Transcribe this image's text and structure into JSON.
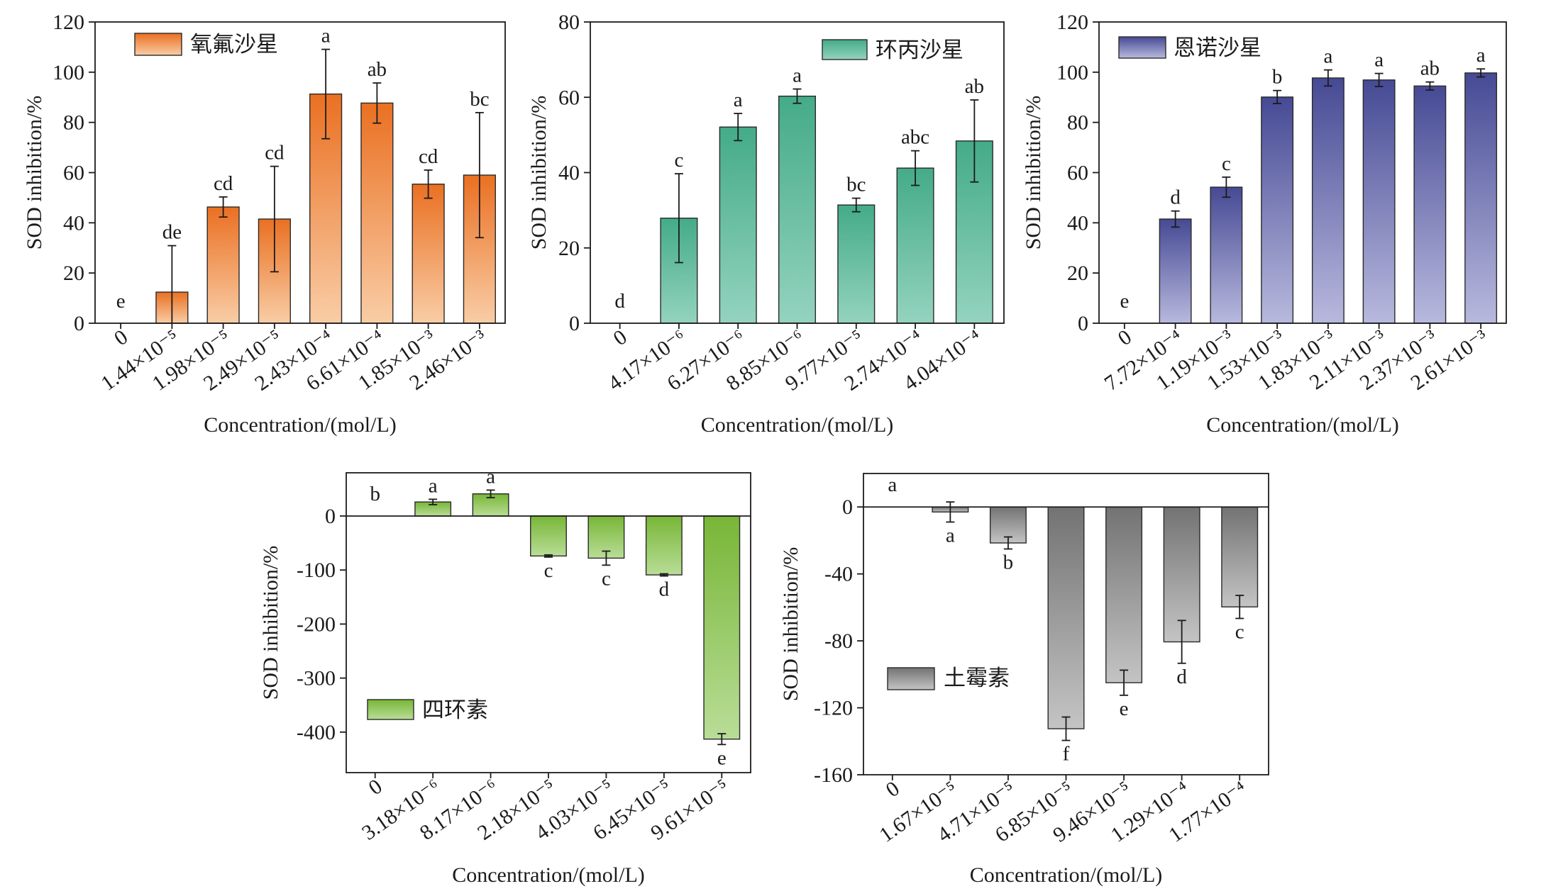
{
  "chart_data": [
    {
      "type": "bar",
      "categories": [
        "0",
        "1.44×10⁻⁵",
        "1.98×10⁻⁵",
        "2.49×10⁻⁵",
        "2.43×10⁻⁴",
        "6.61×10⁻⁴",
        "1.85×10⁻³",
        "2.46×10⁻³"
      ],
      "series": [
        {
          "name": "氧氟沙星",
          "values": [
            0,
            12.4,
            46.3,
            41.5,
            91.3,
            87.7,
            55.4,
            59.0
          ],
          "errors": [
            0,
            18.5,
            4.0,
            21.0,
            17.8,
            8.0,
            5.6,
            24.9
          ],
          "letters": [
            "e",
            "de",
            "cd",
            "cd",
            "a",
            "ab",
            "cd",
            "bc"
          ]
        }
      ],
      "xlabel": "Concentration/(mol/L)",
      "ylabel": "SOD inhibition/%",
      "ylim": [
        0,
        120
      ],
      "yticks": [
        0,
        20,
        40,
        60,
        80,
        100,
        120
      ],
      "grid": false,
      "legend_position": "top-left",
      "color_top": "#EA7022",
      "color_bottom": "#F9CDA6"
    },
    {
      "type": "bar",
      "categories": [
        "0",
        "4.17×10⁻⁶",
        "6.27×10⁻⁶",
        "8.85×10⁻⁶",
        "9.77×10⁻⁵",
        "2.74×10⁻⁴",
        "4.04×10⁻⁴"
      ],
      "series": [
        {
          "name": "环丙沙星",
          "values": [
            0,
            27.9,
            52.1,
            60.3,
            31.4,
            41.2,
            48.4
          ],
          "errors": [
            0,
            11.8,
            3.6,
            1.9,
            1.8,
            4.6,
            10.9
          ],
          "letters": [
            "d",
            "c",
            "a",
            "a",
            "bc",
            "abc",
            "ab"
          ]
        }
      ],
      "xlabel": "Concentration/(mol/L)",
      "ylabel": "SOD inhibition/%",
      "ylim": [
        0,
        80
      ],
      "yticks": [
        0,
        20,
        40,
        60,
        80
      ],
      "grid": false,
      "legend_position": "top-right",
      "color_top": "#44AB88",
      "color_bottom": "#94D3BF"
    },
    {
      "type": "bar",
      "categories": [
        "0",
        "7.72×10⁻⁴",
        "1.19×10⁻³",
        "1.53×10⁻³",
        "1.83×10⁻³",
        "2.11×10⁻³",
        "2.37×10⁻³",
        "2.61×10⁻³"
      ],
      "series": [
        {
          "name": "恩诺沙星",
          "values": [
            0,
            41.5,
            54.2,
            90.1,
            97.7,
            96.9,
            94.5,
            99.7
          ],
          "errors": [
            0,
            3.2,
            4.0,
            2.6,
            3.2,
            2.6,
            1.6,
            1.6
          ],
          "letters": [
            "e",
            "d",
            "c",
            "b",
            "a",
            "a",
            "ab",
            "a"
          ]
        }
      ],
      "xlabel": "Concentration/(mol/L)",
      "ylabel": "SOD inhibition/%",
      "ylim": [
        0,
        120
      ],
      "yticks": [
        0,
        20,
        40,
        60,
        80,
        100,
        120
      ],
      "grid": false,
      "legend_position": "top-left",
      "color_top": "#464A94",
      "color_bottom": "#B8B9DE"
    },
    {
      "type": "bar",
      "categories": [
        "0",
        "3.18×10⁻⁶",
        "8.17×10⁻⁶",
        "2.18×10⁻⁵",
        "4.03×10⁻⁵",
        "6.45×10⁻⁵",
        "9.61×10⁻⁵"
      ],
      "series": [
        {
          "name": "四环素",
          "values": [
            0,
            26,
            41,
            -74,
            -78,
            -109,
            -413
          ],
          "errors": [
            0,
            5,
            7,
            2,
            13,
            2,
            10
          ],
          "letters": [
            "b",
            "a",
            "a",
            "c",
            "c",
            "d",
            "e"
          ]
        }
      ],
      "xlabel": "Concentration/(mol/L)",
      "ylabel": "SOD inhibition/%",
      "ylim": [
        -475,
        80
      ],
      "yticks": [
        -400,
        -300,
        -200,
        -100,
        0
      ],
      "grid": false,
      "legend_position": "bottom-left",
      "color_top": "#78B637",
      "color_bottom": "#B9DD97"
    },
    {
      "type": "bar",
      "categories": [
        "0",
        "1.67×10⁻⁵",
        "4.71×10⁻⁵",
        "6.85×10⁻⁵",
        "9.46×10⁻⁵",
        "1.29×10⁻⁴",
        "1.77×10⁻⁴"
      ],
      "series": [
        {
          "name": "土霉素",
          "values": [
            0,
            -3,
            -21.5,
            -132.5,
            -105,
            -80.6,
            -59.7
          ],
          "errors": [
            0,
            6,
            3.6,
            7,
            7.5,
            12.8,
            6.9
          ],
          "letters": [
            "a",
            "a",
            "b",
            "f",
            "e",
            "d",
            "c"
          ]
        }
      ],
      "xlabel": "Concentration/(mol/L)",
      "ylabel": "SOD inhibition/%",
      "ylim": [
        -160,
        20
      ],
      "yticks": [
        -160,
        -120,
        -80,
        -40,
        0
      ],
      "grid": false,
      "legend_position": "bottom-left",
      "color_top": "#737373",
      "color_bottom": "#C4C4C4"
    }
  ]
}
